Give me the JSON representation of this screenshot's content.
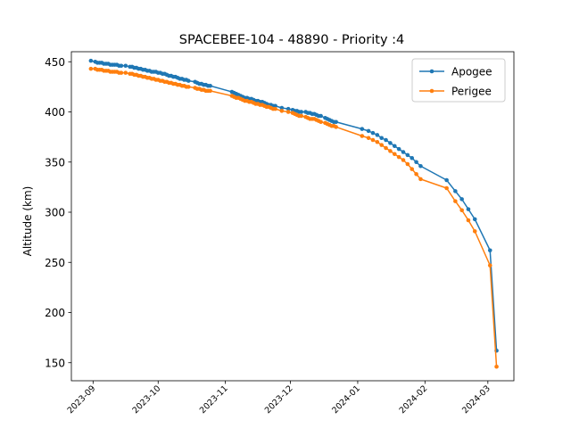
{
  "chart_data": {
    "type": "line",
    "title": "SPACEBEE-104 - 48890 - Priority :4",
    "xlabel": "",
    "ylabel": "Altitude (km)",
    "x_type": "date",
    "xlim": [
      "2023-08-22",
      "2024-03-13"
    ],
    "ylim": [
      132,
      460
    ],
    "x_ticks": [
      "2023-09",
      "2023-10",
      "2023-11",
      "2023-12",
      "2024-01",
      "2024-02",
      "2024-03"
    ],
    "y_ticks": [
      150,
      200,
      250,
      300,
      350,
      400,
      450
    ],
    "grid": false,
    "legend_position": "top-right",
    "series": [
      {
        "name": "Apogee",
        "color": "#1f77b4",
        "x": [
          "2023-08-31",
          "2023-09-02",
          "2023-09-03",
          "2023-09-04",
          "2023-09-05",
          "2023-09-06",
          "2023-09-07",
          "2023-09-08",
          "2023-09-09",
          "2023-09-10",
          "2023-09-11",
          "2023-09-12",
          "2023-09-13",
          "2023-09-14",
          "2023-09-16",
          "2023-09-18",
          "2023-09-19",
          "2023-09-20",
          "2023-09-21",
          "2023-09-22",
          "2023-09-23",
          "2023-09-24",
          "2023-09-25",
          "2023-09-26",
          "2023-09-27",
          "2023-09-28",
          "2023-09-29",
          "2023-09-30",
          "2023-10-01",
          "2023-10-02",
          "2023-10-03",
          "2023-10-04",
          "2023-10-05",
          "2023-10-06",
          "2023-10-07",
          "2023-10-08",
          "2023-10-09",
          "2023-10-10",
          "2023-10-11",
          "2023-10-12",
          "2023-10-13",
          "2023-10-14",
          "2023-10-15",
          "2023-10-18",
          "2023-10-19",
          "2023-10-20",
          "2023-10-21",
          "2023-10-22",
          "2023-10-23",
          "2023-10-24",
          "2023-10-25",
          "2023-11-04",
          "2023-11-05",
          "2023-11-06",
          "2023-11-07",
          "2023-11-08",
          "2023-11-09",
          "2023-11-10",
          "2023-11-11",
          "2023-11-12",
          "2023-11-13",
          "2023-11-14",
          "2023-11-15",
          "2023-11-16",
          "2023-11-17",
          "2023-11-18",
          "2023-11-19",
          "2023-11-20",
          "2023-11-21",
          "2023-11-22",
          "2023-11-23",
          "2023-11-24",
          "2023-11-27",
          "2023-11-30",
          "2023-12-02",
          "2023-12-03",
          "2023-12-04",
          "2023-12-05",
          "2023-12-06",
          "2023-12-08",
          "2023-12-09",
          "2023-12-10",
          "2023-12-11",
          "2023-12-12",
          "2023-12-13",
          "2023-12-14",
          "2023-12-15",
          "2023-12-17",
          "2023-12-18",
          "2023-12-19",
          "2023-12-20",
          "2023-12-21",
          "2023-12-22",
          "2024-01-03",
          "2024-01-06",
          "2024-01-08",
          "2024-01-10",
          "2024-01-12",
          "2024-01-14",
          "2024-01-16",
          "2024-01-18",
          "2024-01-20",
          "2024-01-22",
          "2024-01-24",
          "2024-01-26",
          "2024-01-28",
          "2024-01-30",
          "2024-02-11",
          "2024-02-15",
          "2024-02-18",
          "2024-02-21",
          "2024-02-24",
          "2024-03-02",
          "2024-03-05"
        ],
        "values": [
          451,
          450,
          449,
          449,
          449,
          448,
          448,
          448,
          447,
          447,
          447,
          447,
          446,
          446,
          446,
          445,
          445,
          444,
          444,
          443,
          443,
          442,
          442,
          441,
          441,
          440,
          440,
          440,
          439,
          439,
          438,
          438,
          437,
          436,
          436,
          435,
          435,
          434,
          433,
          433,
          432,
          432,
          431,
          430,
          429,
          428,
          428,
          427,
          427,
          426,
          426,
          420,
          419,
          418,
          417,
          416,
          415,
          414,
          414,
          413,
          413,
          412,
          411,
          411,
          410,
          410,
          409,
          408,
          407,
          407,
          406,
          406,
          404,
          403,
          402,
          401,
          401,
          400,
          400,
          400,
          399,
          399,
          398,
          398,
          397,
          396,
          396,
          394,
          393,
          392,
          391,
          390,
          390,
          383,
          381,
          379,
          377,
          374,
          372,
          369,
          366,
          363,
          360,
          357,
          354,
          350,
          346,
          332,
          321,
          313,
          303,
          293,
          262,
          162
        ]
      },
      {
        "name": "Perigee",
        "color": "#ff7f0e",
        "x": [
          "2023-08-31",
          "2023-09-02",
          "2023-09-03",
          "2023-09-04",
          "2023-09-05",
          "2023-09-06",
          "2023-09-07",
          "2023-09-08",
          "2023-09-09",
          "2023-09-10",
          "2023-09-11",
          "2023-09-12",
          "2023-09-13",
          "2023-09-14",
          "2023-09-16",
          "2023-09-18",
          "2023-09-19",
          "2023-09-20",
          "2023-09-21",
          "2023-09-22",
          "2023-09-23",
          "2023-09-24",
          "2023-09-25",
          "2023-09-26",
          "2023-09-27",
          "2023-09-28",
          "2023-09-29",
          "2023-09-30",
          "2023-10-01",
          "2023-10-02",
          "2023-10-03",
          "2023-10-04",
          "2023-10-05",
          "2023-10-06",
          "2023-10-07",
          "2023-10-08",
          "2023-10-09",
          "2023-10-10",
          "2023-10-11",
          "2023-10-12",
          "2023-10-13",
          "2023-10-14",
          "2023-10-15",
          "2023-10-18",
          "2023-10-19",
          "2023-10-20",
          "2023-10-21",
          "2023-10-22",
          "2023-10-23",
          "2023-10-24",
          "2023-10-25",
          "2023-11-04",
          "2023-11-05",
          "2023-11-06",
          "2023-11-07",
          "2023-11-08",
          "2023-11-09",
          "2023-11-10",
          "2023-11-11",
          "2023-11-12",
          "2023-11-13",
          "2023-11-14",
          "2023-11-15",
          "2023-11-16",
          "2023-11-17",
          "2023-11-18",
          "2023-11-19",
          "2023-11-20",
          "2023-11-21",
          "2023-11-22",
          "2023-11-23",
          "2023-11-24",
          "2023-11-27",
          "2023-11-30",
          "2023-12-02",
          "2023-12-03",
          "2023-12-04",
          "2023-12-05",
          "2023-12-06",
          "2023-12-08",
          "2023-12-09",
          "2023-12-10",
          "2023-12-11",
          "2023-12-12",
          "2023-12-13",
          "2023-12-14",
          "2023-12-15",
          "2023-12-17",
          "2023-12-18",
          "2023-12-19",
          "2023-12-20",
          "2023-12-21",
          "2023-12-22",
          "2024-01-03",
          "2024-01-06",
          "2024-01-08",
          "2024-01-10",
          "2024-01-12",
          "2024-01-14",
          "2024-01-16",
          "2024-01-18",
          "2024-01-20",
          "2024-01-22",
          "2024-01-24",
          "2024-01-26",
          "2024-01-28",
          "2024-01-30",
          "2024-02-11",
          "2024-02-15",
          "2024-02-18",
          "2024-02-21",
          "2024-02-24",
          "2024-03-02",
          "2024-03-05"
        ],
        "values": [
          443,
          443,
          442,
          442,
          442,
          441,
          441,
          441,
          440,
          440,
          440,
          440,
          439,
          439,
          439,
          438,
          438,
          437,
          437,
          436,
          436,
          435,
          435,
          434,
          434,
          433,
          433,
          432,
          432,
          431,
          431,
          430,
          430,
          429,
          429,
          428,
          428,
          427,
          427,
          426,
          426,
          425,
          425,
          424,
          423,
          423,
          422,
          422,
          421,
          421,
          421,
          416,
          415,
          414,
          414,
          413,
          412,
          411,
          411,
          410,
          410,
          409,
          408,
          408,
          407,
          407,
          406,
          405,
          405,
          404,
          403,
          403,
          401,
          400,
          399,
          398,
          397,
          396,
          396,
          395,
          394,
          393,
          393,
          393,
          392,
          391,
          390,
          389,
          388,
          387,
          386,
          386,
          385,
          376,
          374,
          372,
          370,
          367,
          364,
          361,
          358,
          355,
          352,
          348,
          343,
          338,
          333,
          324,
          311,
          302,
          292,
          281,
          247,
          146
        ]
      }
    ]
  }
}
